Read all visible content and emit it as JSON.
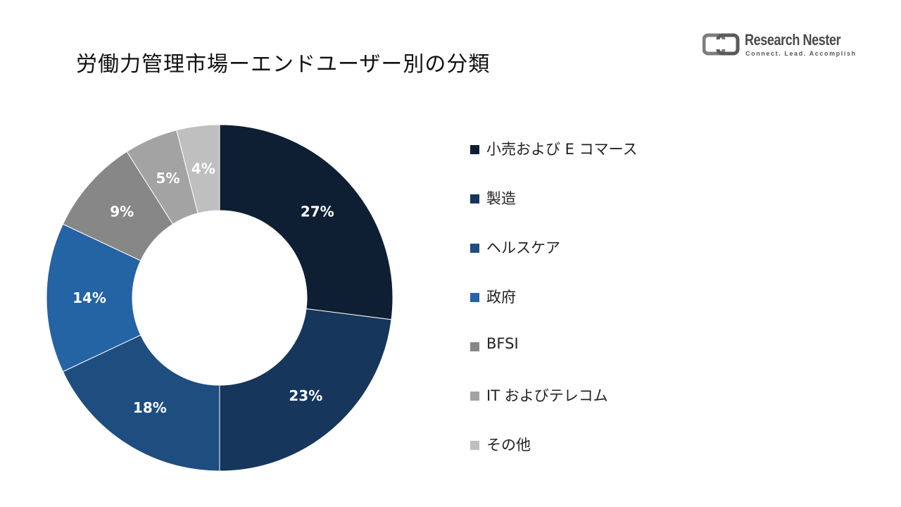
{
  "title": "労働力管理市場ーエンドユーザー別の分類",
  "logo": {
    "name": "Research Nester",
    "tagline": "Connect. Lead. Accomplish"
  },
  "chart_data": {
    "type": "pie",
    "donut": true,
    "title": "労働力管理市場ーエンドユーザー別の分類",
    "legend_position": "right",
    "categories": [
      "小売および E コマース",
      "製造",
      "ヘルスケア",
      "政府",
      "BFSI",
      "IT およびテレコム",
      "その他"
    ],
    "values": [
      27,
      23,
      18,
      14,
      9,
      5,
      4
    ],
    "labels": [
      "27%",
      "23%",
      "18%",
      "14%",
      "9%",
      "5%",
      "4%"
    ],
    "colors": [
      "#0f1f33",
      "#16365b",
      "#1e4d80",
      "#2463a4",
      "#878787",
      "#a3a3a3",
      "#bfbfbf"
    ]
  }
}
